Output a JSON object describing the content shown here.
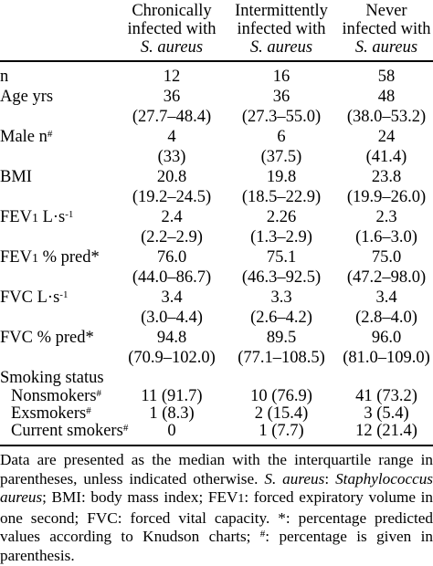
{
  "columns": [
    {
      "line1": "Chronically",
      "line2": "infected with",
      "line3": "S. aureus"
    },
    {
      "line1": "Intermittently",
      "line2": "infected with",
      "line3": "S. aureus"
    },
    {
      "line1": "Never",
      "line2": "infected with",
      "line3": "S. aureus"
    }
  ],
  "rows": {
    "n": {
      "label": "n",
      "v1": "12",
      "v2": "16",
      "v3": "58"
    },
    "age": {
      "label": "Age yrs",
      "v1": "36",
      "v2": "36",
      "v3": "48",
      "r1": "(27.7–48.4)",
      "r2": "(27.3–55.0)",
      "r3": "(38.0–53.2)"
    },
    "male": {
      "label": "Male n",
      "sup": "#",
      "v1": "4",
      "v2": "6",
      "v3": "24",
      "r1": "(33)",
      "r2": "(37.5)",
      "r3": "(41.4)"
    },
    "bmi": {
      "label": "BMI",
      "v1": "20.8",
      "v2": "19.8",
      "v3": "23.8",
      "r1": "(19.2–24.5)",
      "r2": "(18.5–22.9)",
      "r3": "(19.9–26.0)"
    },
    "fev1": {
      "label_a": "FEV",
      "label_sub": "1",
      "label_b": " L·s",
      "sup": "-1",
      "v1": "2.4",
      "v2": "2.26",
      "v3": "2.3",
      "r1": "(2.2–2.9)",
      "r2": "(1.3–2.9)",
      "r3": "(1.6–3.0)"
    },
    "fev1pred": {
      "label_a": "FEV",
      "label_sub": "1",
      "label_b": " % pred*",
      "v1": "76.0",
      "v2": "75.1",
      "v3": "75.0",
      "r1": "(44.0–86.7)",
      "r2": "(46.3–92.5)",
      "r3": "(47.2–98.0)"
    },
    "fvc": {
      "label": "FVC L·s",
      "sup": "-1",
      "v1": "3.4",
      "v2": "3.3",
      "v3": "3.4",
      "r1": "(3.0–4.4)",
      "r2": "(2.6–4.2)",
      "r3": "(2.8–4.0)"
    },
    "fvcpred": {
      "label": "FVC % pred*",
      "v1": "94.8",
      "v2": "89.5",
      "v3": "96.0",
      "r1": "(70.9–102.0)",
      "r2": "(77.1–108.5)",
      "r3": "(81.0–109.0)"
    },
    "smoking": {
      "label": "Smoking status"
    },
    "nonsmokers": {
      "label": "Nonsmokers",
      "sup": "#",
      "v1": "11 (91.7)",
      "v2": "10 (76.9)",
      "v3": "41 (73.2)"
    },
    "exsmokers": {
      "label": "Exsmokers",
      "sup": "#",
      "v1": "1 (8.3)",
      "v2": "2 (15.4)",
      "v3": "3 (5.4)"
    },
    "current": {
      "label": "Current smokers",
      "sup": "#",
      "v1": "0",
      "v2": "1 (7.7)",
      "v3": "12 (21.4)"
    }
  },
  "footnote": {
    "t1": "Data are presented as the median with the interquartile range in parentheses, unless indicated otherwise. ",
    "t2": "S. aureus",
    "t3": ": ",
    "t4": "Staphylococcus aureus",
    "t5": "; BMI: body mass index; FEV",
    "t6": "1",
    "t7": ": forced expiratory volume in one second; FVC: forced vital capacity. *: percentage predicted values according to Knudson charts; ",
    "t8": "#",
    "t9": ": percentage is given in parenthesis."
  }
}
